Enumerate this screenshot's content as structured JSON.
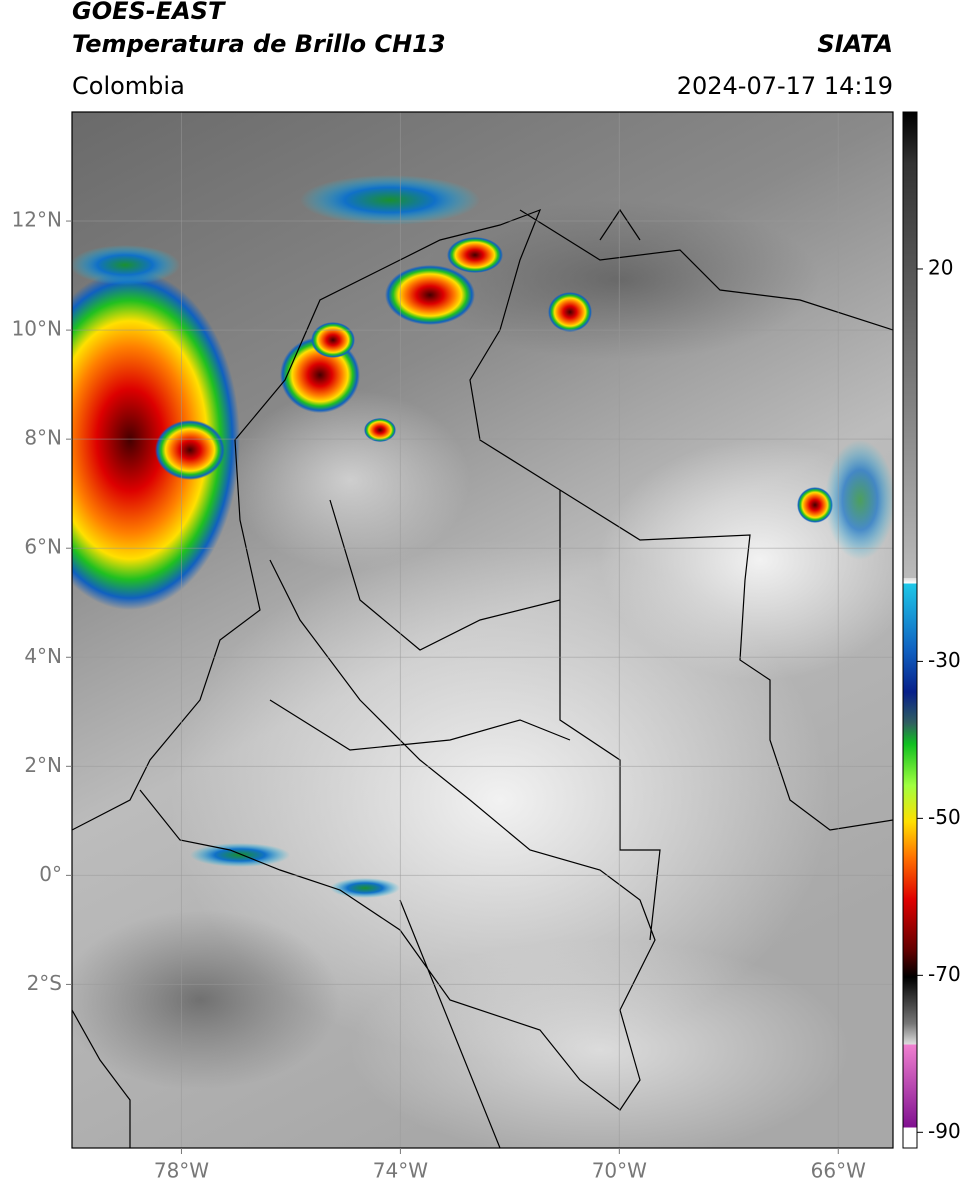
{
  "header": {
    "title": "GOES-EAST",
    "subtitle": "Temperatura de Brillo CH13",
    "source": "SIATA",
    "region": "Colombia",
    "datetime": "2024-07-17 14:19"
  },
  "map": {
    "lon_range": [
      -80,
      -65
    ],
    "lat_range": [
      -5,
      14
    ],
    "lon_ticks": [
      {
        "value": -78,
        "label": "78°W"
      },
      {
        "value": -74,
        "label": "74°W"
      },
      {
        "value": -70,
        "label": "70°W"
      },
      {
        "value": -66,
        "label": "66°W"
      }
    ],
    "lat_ticks": [
      {
        "value": 12,
        "label": "12°N"
      },
      {
        "value": 10,
        "label": "10°N"
      },
      {
        "value": 8,
        "label": "8°N"
      },
      {
        "value": 6,
        "label": "6°N"
      },
      {
        "value": 4,
        "label": "4°N"
      },
      {
        "value": 2,
        "label": "2°N"
      },
      {
        "value": 0,
        "label": "0°"
      },
      {
        "value": -2,
        "label": "2°S"
      }
    ]
  },
  "colorbar": {
    "range": [
      -92,
      40
    ],
    "ticks": [
      20,
      -30,
      -50,
      -70,
      -90
    ]
  }
}
